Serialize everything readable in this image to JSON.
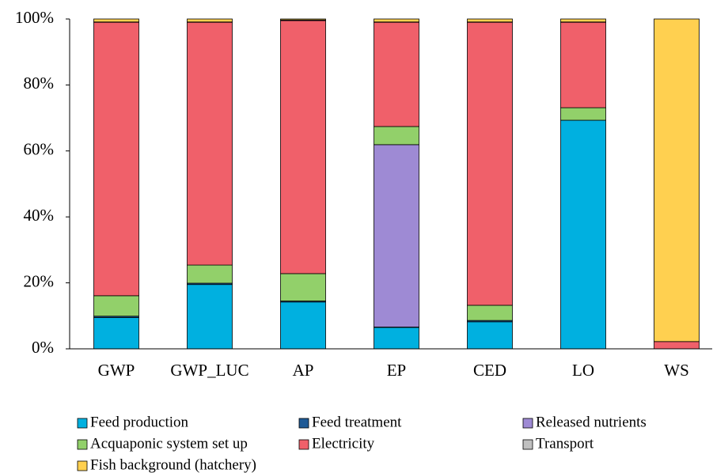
{
  "chart_data": {
    "type": "stacked_bar",
    "categories": [
      "GWP",
      "GWP_LUC",
      "AP",
      "EP",
      "CED",
      "LO",
      "WS"
    ],
    "series": [
      {
        "name": "Feed production",
        "color": "#00b0e0",
        "values": [
          9.5,
          19.5,
          14.2,
          6.5,
          8.2,
          69.3,
          0
        ]
      },
      {
        "name": "Feed treatment",
        "color": "#1f5a96",
        "values": [
          0.4,
          0.4,
          0.3,
          0.1,
          0.4,
          0,
          0
        ]
      },
      {
        "name": "Released nutrients",
        "color": "#9e8ad4",
        "values": [
          0,
          0,
          0,
          55.3,
          0,
          0,
          0
        ]
      },
      {
        "name": "Acquaponic system set up",
        "color": "#92d06a",
        "values": [
          6.2,
          5.5,
          8.3,
          5.5,
          4.6,
          3.8,
          0
        ]
      },
      {
        "name": "Electricity",
        "color": "#f0606a",
        "values": [
          82.9,
          73.6,
          76.7,
          31.6,
          85.8,
          25.9,
          2.2
        ]
      },
      {
        "name": "Transport",
        "color": "#c0c0c0",
        "values": [
          0.1,
          0.1,
          0.2,
          0.1,
          0.1,
          0.1,
          0
        ]
      },
      {
        "name": "Fish background (hatchery)",
        "color": "#ffd050",
        "values": [
          0.9,
          0.9,
          0.3,
          0.9,
          0.9,
          0.9,
          97.8
        ]
      }
    ],
    "ylim": [
      0,
      100
    ],
    "yticks": [
      {
        "value": 0,
        "label": "0%"
      },
      {
        "value": 20,
        "label": "20%"
      },
      {
        "value": 40,
        "label": "40%"
      },
      {
        "value": 60,
        "label": "60%"
      },
      {
        "value": 80,
        "label": "80%"
      },
      {
        "value": 100,
        "label": "100%"
      }
    ],
    "grid": false
  }
}
